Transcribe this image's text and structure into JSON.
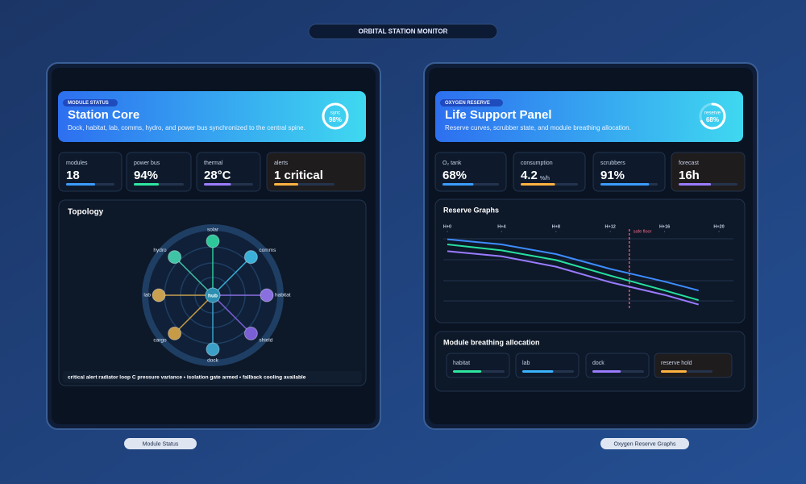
{
  "title": "ORBITAL STATION MONITOR",
  "panels": [
    {
      "caption": "Module Status",
      "header": {
        "tag": "MODULE STATUS",
        "title": "Station Core",
        "description": "Dock, habitat, lab, comms, hydro, and power bus synchronized to the central spine.",
        "gauge": {
          "label": "sync",
          "value": 98,
          "value_label": "98%"
        }
      },
      "stats": [
        {
          "label": "modules",
          "value": "18",
          "fill": 60,
          "color": "#3b9cff"
        },
        {
          "label": "power bus",
          "value": "94%",
          "fill": 50,
          "color": "#2ee6a0"
        },
        {
          "label": "thermal",
          "value": "28°C",
          "fill": 55,
          "color": "#9b7bff"
        },
        {
          "label": "alerts",
          "value": "1 critical",
          "fill": 40,
          "color": "#ffb340",
          "highlight": true
        }
      ],
      "topology": {
        "title": "Topology",
        "hub": "hub",
        "nodes": [
          {
            "label": "solar",
            "color": "#2ec79a"
          },
          {
            "label": "comms",
            "color": "#3ab0d8"
          },
          {
            "label": "habitat",
            "color": "#8a6fe0"
          },
          {
            "label": "shield",
            "color": "#7b5fd6"
          },
          {
            "label": "dock",
            "color": "#3aa0c8"
          },
          {
            "label": "cargo",
            "color": "#c79a45"
          },
          {
            "label": "lab",
            "color": "#c8a050"
          },
          {
            "label": "hydro",
            "color": "#3fc4a5"
          }
        ],
        "footer": "critical alert radiator loop C pressure variance • isolation gate armed • fallback cooling available"
      }
    },
    {
      "caption": "Oxygen Reserve Graphs",
      "header": {
        "tag": "OXYGEN RESERVE",
        "title": "Life Support Panel",
        "description": "Reserve curves, scrubber state, and module breathing allocation.",
        "gauge": {
          "label": "reserve",
          "value": 68,
          "value_label": "68%"
        }
      },
      "stats": [
        {
          "label": "O₂ tank",
          "value": "68%",
          "fill": 55,
          "color": "#3b9cff"
        },
        {
          "label": "consumption",
          "value": "4.2",
          "unit": "%/h",
          "fill": 60,
          "color": "#ffb340"
        },
        {
          "label": "scrubbers",
          "value": "91%",
          "fill": 85,
          "color": "#3b9cff"
        },
        {
          "label": "forecast",
          "value": "16h",
          "fill": 55,
          "color": "#9b7bff",
          "highlight": true
        }
      ],
      "chart_data": {
        "type": "line",
        "title": "Reserve Graphs",
        "x": [
          0,
          4,
          8,
          12,
          16,
          18.5
        ],
        "series": [
          {
            "color": "#3d8cff",
            "values": [
              95,
              88,
              75,
              55,
              38,
              26
            ]
          },
          {
            "color": "#27e0a0",
            "values": [
              88,
              80,
              67,
              46,
              26,
              13
            ]
          },
          {
            "color": "#9a7bff",
            "values": [
              79,
              72,
              58,
              37,
              20,
              7
            ]
          }
        ],
        "xlim": [
          0,
          20
        ],
        "ylim": [
          0,
          100
        ],
        "xticks": [
          {
            "value": 0,
            "label": "H+0"
          },
          {
            "value": 4,
            "label": "H+4"
          },
          {
            "value": 8,
            "label": "H+8"
          },
          {
            "value": 12,
            "label": "H+12"
          },
          {
            "value": 16,
            "label": "H+16"
          },
          {
            "value": 20,
            "label": "H+20"
          }
        ],
        "threshold": {
          "x": 13.4,
          "label": "safe floor",
          "color": "#ff6b8a"
        },
        "grid": true
      },
      "allocation": {
        "title": "Module breathing allocation",
        "items": [
          {
            "label": "habitat",
            "fill": 55,
            "color": "#2ee6a0"
          },
          {
            "label": "lab",
            "fill": 60,
            "color": "#3bb4ff"
          },
          {
            "label": "dock",
            "fill": 55,
            "color": "#9b7bff"
          },
          {
            "label": "reserve hold",
            "fill": 50,
            "color": "#ffb340",
            "highlight": true
          }
        ]
      }
    }
  ]
}
